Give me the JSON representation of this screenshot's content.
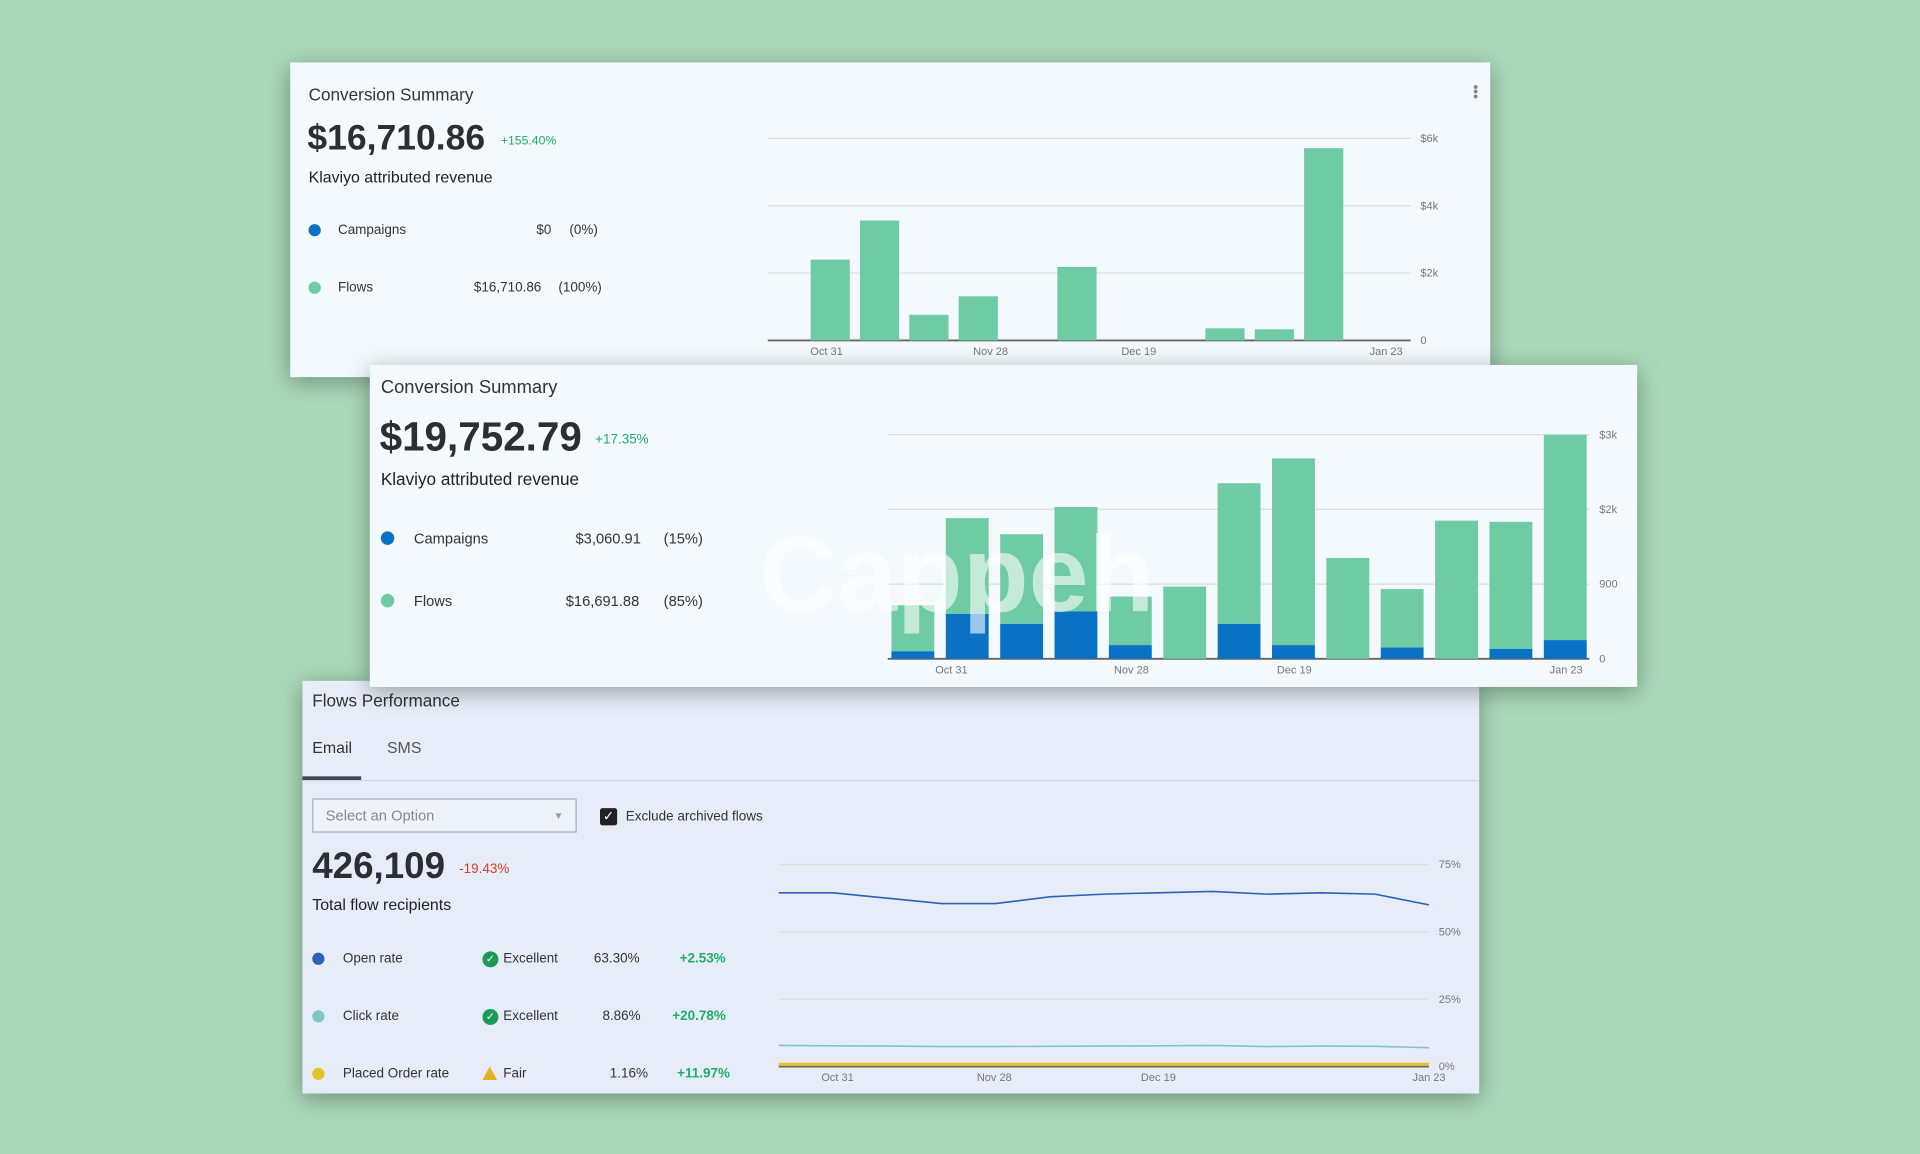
{
  "colors": {
    "campaigns": "#0a72c4",
    "flows": "#6fcba4",
    "open": "#2a62b8",
    "click": "#7cc9c4",
    "placed": "#e6c22a",
    "positive": "#1fae6a",
    "negative": "#d7402b"
  },
  "summary1": {
    "title": "Conversion Summary",
    "amount": "$16,710.86",
    "change": "+155.40%",
    "subtitle": "Klaviyo attributed revenue",
    "legend": [
      {
        "label": "Campaigns",
        "value": "$0",
        "pct": "(0%)"
      },
      {
        "label": "Flows",
        "value": "$16,710.86",
        "pct": "(100%)"
      }
    ]
  },
  "summary2": {
    "title": "Conversion Summary",
    "amount": "$19,752.79",
    "change": "+17.35%",
    "subtitle": "Klaviyo attributed revenue",
    "legend": [
      {
        "label": "Campaigns",
        "value": "$3,060.91",
        "pct": "(15%)"
      },
      {
        "label": "Flows",
        "value": "$16,691.88",
        "pct": "(85%)"
      }
    ],
    "watermark": "Cappeh"
  },
  "flows": {
    "title": "Flows Performance",
    "tabs": [
      {
        "label": "Email",
        "active": true
      },
      {
        "label": "SMS",
        "active": false
      }
    ],
    "select_placeholder": "Select an Option",
    "exclude_label": "Exclude archived flows",
    "exclude_checked": true,
    "total": "426,109",
    "change": "-19.43%",
    "subtitle": "Total flow recipients",
    "metrics": [
      {
        "label": "Open rate",
        "rating": "Excellent",
        "value": "63.30%",
        "change": "+2.53%"
      },
      {
        "label": "Click rate",
        "rating": "Excellent",
        "value": "8.86%",
        "change": "+20.78%"
      },
      {
        "label": "Placed Order rate",
        "rating": "Fair",
        "value": "1.16%",
        "change": "+11.97%"
      }
    ]
  },
  "chart_data": [
    {
      "type": "bar",
      "title": "Conversion Summary",
      "ylim": [
        0,
        6000
      ],
      "yticks": [
        "0",
        "$2k",
        "$4k",
        "$6k"
      ],
      "xticks": [
        "Oct 31",
        "Nov 28",
        "Dec 19",
        "Jan 23"
      ],
      "series": [
        {
          "name": "Flows",
          "values": [
            2400,
            3560,
            760,
            1310,
            0,
            2180,
            0,
            0,
            360,
            330,
            5710
          ]
        }
      ]
    },
    {
      "type": "bar",
      "stacked": true,
      "title": "Conversion Summary",
      "ylim": [
        0,
        3000
      ],
      "yticks": [
        "0",
        "900",
        "$2k",
        "$3k"
      ],
      "xticks": [
        "Oct 31",
        "Nov 28",
        "Dec 19",
        "Jan 23"
      ],
      "series": [
        {
          "name": "Campaigns",
          "values": [
            100,
            600,
            467,
            633,
            183,
            0,
            467,
            183,
            0,
            150,
            0,
            133,
            250
          ]
        },
        {
          "name": "Flows",
          "values": [
            617,
            1283,
            1200,
            1400,
            650,
            967,
            1883,
            2500,
            1350,
            783,
            1850,
            1700,
            2750
          ]
        }
      ]
    },
    {
      "type": "line",
      "title": "Flows Performance",
      "ylim": [
        0,
        75
      ],
      "yticks": [
        "0%",
        "25%",
        "50%",
        "75%"
      ],
      "xticks": [
        "Oct 31",
        "Nov 28",
        "Dec 19",
        "Jan 23"
      ],
      "series": [
        {
          "name": "Open rate",
          "values": [
            64.5,
            64.5,
            62.5,
            60.5,
            60.5,
            63,
            64,
            64.5,
            65,
            64,
            64.5,
            64,
            60
          ]
        },
        {
          "name": "Click rate",
          "values": [
            7.8,
            7.7,
            7.6,
            7.4,
            7.4,
            7.5,
            7.6,
            7.7,
            7.8,
            7.4,
            7.6,
            7.5,
            7.0
          ]
        },
        {
          "name": "Placed Order rate",
          "values": [
            0.8,
            0.8,
            0.8,
            0.8,
            0.8,
            0.8,
            0.8,
            0.8,
            0.8,
            0.8,
            0.8,
            0.8,
            0.8
          ]
        }
      ]
    }
  ]
}
